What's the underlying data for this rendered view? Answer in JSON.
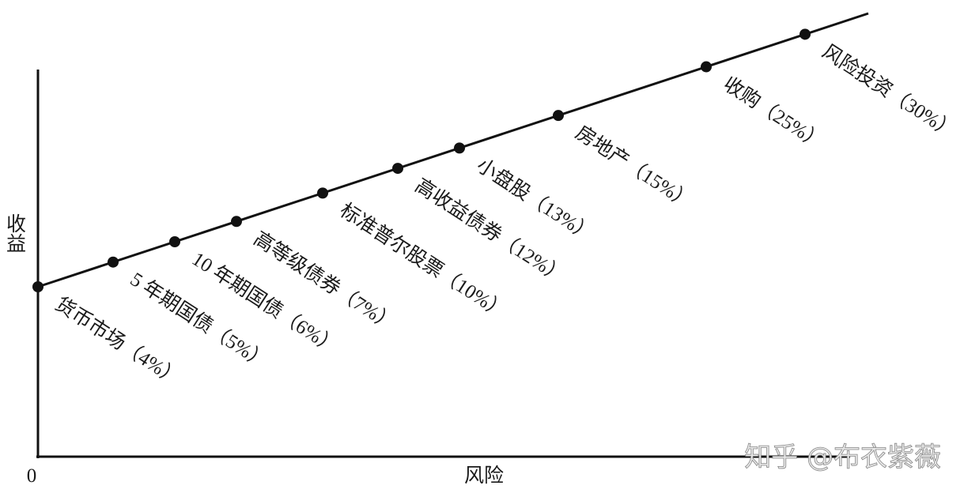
{
  "diagram": {
    "y_axis_label": "收益",
    "x_axis_label": "风险",
    "origin_label": "0",
    "watermark": "知乎 @布衣紫薇",
    "nodes": [
      {
        "label": "货币市场（4%）"
      },
      {
        "label": "5 年期国债（5%）"
      },
      {
        "label": "10 年期国债（6%）"
      },
      {
        "label": "高等级债券（7%）"
      },
      {
        "label": "标准普尔股票（10%）"
      },
      {
        "label": "高收益债券（12%）"
      },
      {
        "label": "小盘股（13%）"
      },
      {
        "label": "房地产（15%）"
      },
      {
        "label": "收购（25%）"
      },
      {
        "label": "风险投资（30%）"
      }
    ]
  }
}
